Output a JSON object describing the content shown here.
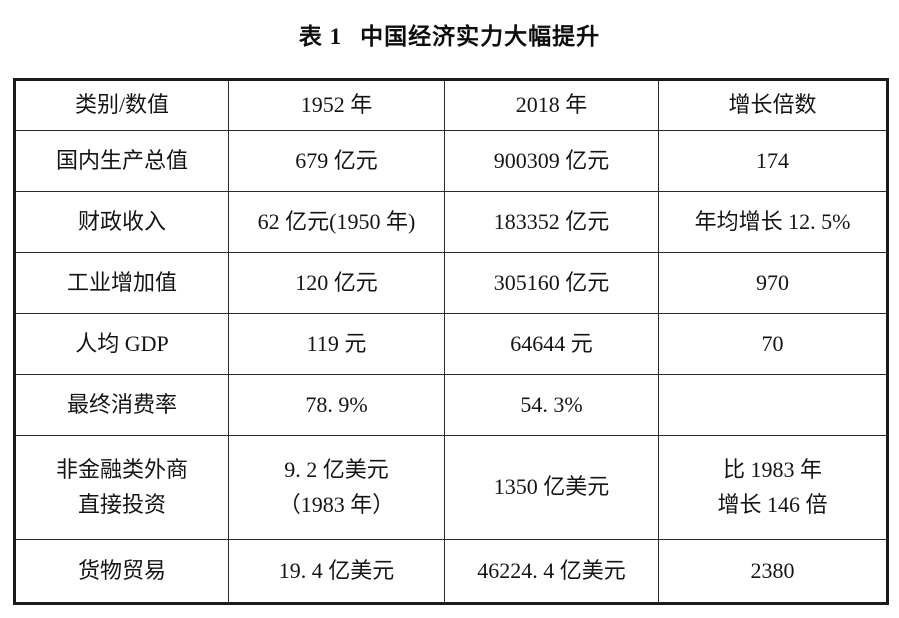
{
  "page": {
    "caption_label": "表 1",
    "caption_text": "中国经济实力大幅提升"
  },
  "table": {
    "headers": [
      "类别/数值",
      "1952 年",
      "2018 年",
      "增长倍数"
    ],
    "rows": [
      {
        "category": "国内生产总值",
        "v1952": "679 亿元",
        "v2018": "900309 亿元",
        "growth": "174"
      },
      {
        "category": "财政收入",
        "v1952": "62 亿元(1950 年)",
        "v2018": "183352 亿元",
        "growth": "年均增长 12. 5%"
      },
      {
        "category": "工业增加值",
        "v1952": "120 亿元",
        "v2018": "305160 亿元",
        "growth": "970"
      },
      {
        "category": "人均 GDP",
        "v1952": "119 元",
        "v2018": "64644 元",
        "growth": "70"
      },
      {
        "category": "最终消费率",
        "v1952": "78. 9%",
        "v2018": "54. 3%",
        "growth": ""
      },
      {
        "category": "非金融类外商\n直接投资",
        "v1952": "9. 2 亿美元\n（1983 年）",
        "v2018": "1350 亿美元",
        "growth": "比 1983 年\n增长 146 倍"
      },
      {
        "category": "货物贸易",
        "v1952": "19. 4 亿美元",
        "v2018": "46224. 4 亿美元",
        "growth": "2380"
      }
    ]
  }
}
